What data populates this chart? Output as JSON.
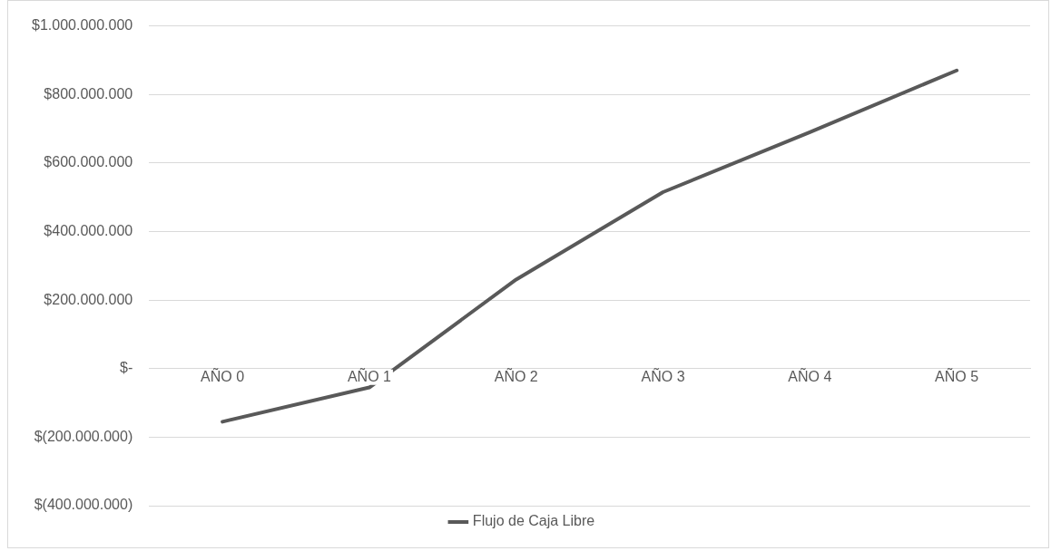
{
  "chart_data": {
    "type": "line",
    "categories": [
      "AÑO 0",
      "AÑO 1",
      "AÑO 2",
      "AÑO 3",
      "AÑO 4",
      "AÑO 5"
    ],
    "series": [
      {
        "name": "Flujo de Caja Libre",
        "color": "#595959",
        "values": [
          -155000000,
          -55000000,
          260000000,
          515000000,
          690000000,
          870000000
        ]
      }
    ],
    "ylim": [
      -400000000,
      1000000000
    ],
    "yticks": [
      {
        "value": -400000000,
        "label": "$(400.000.000)"
      },
      {
        "value": -200000000,
        "label": "$(200.000.000)"
      },
      {
        "value": 0,
        "label": "$-"
      },
      {
        "value": 200000000,
        "label": "$200.000.000"
      },
      {
        "value": 400000000,
        "label": "$400.000.000"
      },
      {
        "value": 600000000,
        "label": "$600.000.000"
      },
      {
        "value": 800000000,
        "label": "$800.000.000"
      },
      {
        "value": 1000000000,
        "label": "$1.000.000.000"
      }
    ],
    "grid": "y",
    "legend": "bottom",
    "marker": "none",
    "line_style": "solid"
  }
}
